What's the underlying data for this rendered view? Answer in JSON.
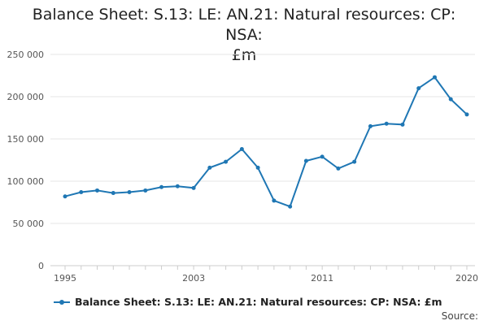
{
  "title_lines": [
    "Balance Sheet: S.13: LE: AN.21: Natural resources: CP: NSA:",
    "£m"
  ],
  "legend_label": "Balance Sheet: S.13: LE: AN.21: Natural resources: CP: NSA: £m",
  "source_label": "Source:",
  "chart_data": {
    "type": "line",
    "title": "Balance Sheet: S.13: LE: AN.21: Natural resources: CP: NSA: £m",
    "xlabel": "",
    "ylabel": "",
    "ylim": [
      0,
      250000
    ],
    "yticks": [
      0,
      50000,
      100000,
      150000,
      200000,
      250000
    ],
    "ytick_labels": [
      "0",
      "50 000",
      "100 000",
      "150 000",
      "200 000",
      "250 000"
    ],
    "xlim": [
      1995,
      2020
    ],
    "xticks": [
      1995,
      2003,
      2011,
      2020
    ],
    "xtick_labels": [
      "1995",
      "2003",
      "2011",
      "2020"
    ],
    "grid": true,
    "legend_position": "bottom",
    "color": "#1f77b4",
    "series": [
      {
        "name": "Balance Sheet: S.13: LE: AN.21: Natural resources: CP: NSA: £m",
        "x": [
          1995,
          1996,
          1997,
          1998,
          1999,
          2000,
          2001,
          2002,
          2003,
          2004,
          2005,
          2006,
          2007,
          2008,
          2009,
          2010,
          2011,
          2012,
          2013,
          2014,
          2015,
          2016,
          2017,
          2018,
          2019,
          2020
        ],
        "values": [
          82000,
          87000,
          89000,
          86000,
          87000,
          89000,
          93000,
          94000,
          92000,
          116000,
          123000,
          138000,
          116000,
          77000,
          70000,
          124000,
          129000,
          115000,
          123000,
          165000,
          168000,
          167000,
          210000,
          223000,
          197000,
          179000
        ]
      }
    ]
  }
}
